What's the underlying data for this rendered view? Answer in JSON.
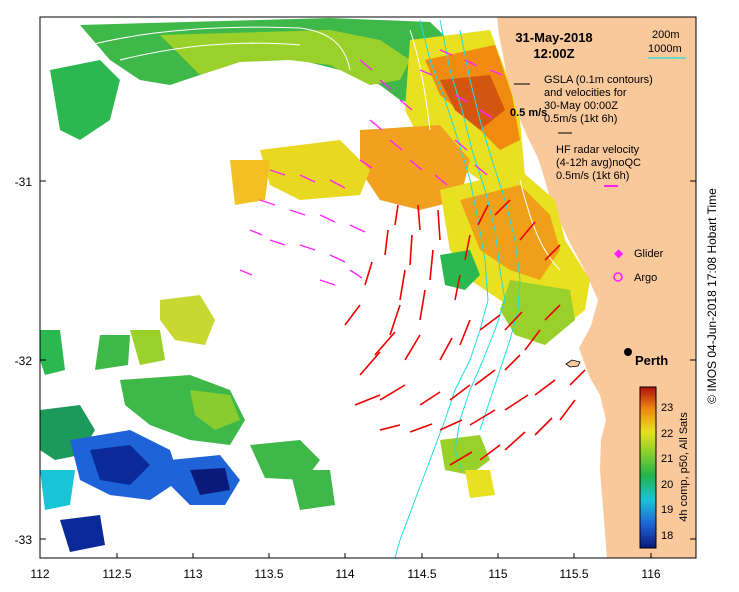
{
  "map": {
    "date": "31-May-2018",
    "time": "12:00Z",
    "legend": {
      "contour_200": "200m",
      "contour_1000": "1000m",
      "gsla_lines": [
        "GSLA (0.1m contours)",
        "and velocities for",
        "30-May 00:00Z",
        "0.5m/s (1kt 6h)"
      ],
      "scale_label": "0.5 m/s",
      "hf_lines": [
        "HF radar velocity",
        "(4-12h avg)noQC",
        "0.5m/s (1kt 6h)"
      ],
      "glider": "Glider",
      "argo": "Argo"
    },
    "place": "Perth",
    "x_ticks": [
      "112",
      "112.5",
      "113",
      "113.5",
      "114",
      "114.5",
      "115",
      "115.5",
      "116"
    ],
    "y_ticks": [
      "-31",
      "-32",
      "-33"
    ],
    "colorbar": {
      "ticks": [
        "23",
        "22",
        "21",
        "20",
        "19",
        "18"
      ],
      "label": "4h comp, p50, All Sats"
    },
    "credit": "© IMOS 04-Jun-2018 17:08 Hobart Time",
    "colors": {
      "land": "#f9c89b",
      "hf_arrow": "#ee0000",
      "gsla_arrow": "#ff22ff",
      "contour": "#22dddd"
    }
  }
}
